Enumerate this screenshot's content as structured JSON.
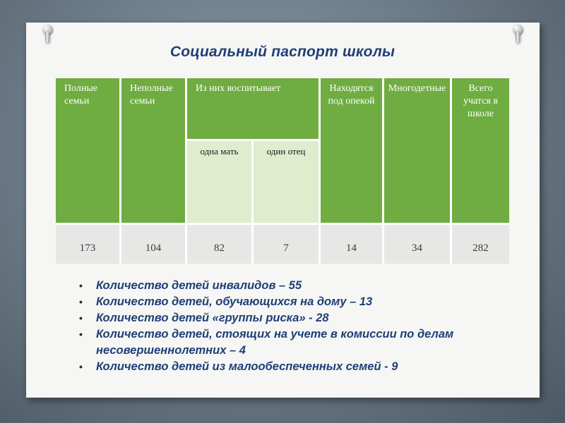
{
  "title": "Социальный паспорт школы",
  "table": {
    "headers": {
      "full_families": "Полные семьи",
      "incomplete_families": "Неполные семьи",
      "raised_by": "Из них воспитывает",
      "under_guardianship": "Находятся под опекой",
      "large_families": "Многодетные",
      "total_students": "Всего учатся в школе"
    },
    "subheaders": {
      "mother_only": "одна мать",
      "father_only": "один отец"
    },
    "values": {
      "full_families": "173",
      "incomplete_families": "104",
      "mother_only": "82",
      "father_only": "7",
      "under_guardianship": "14",
      "large_families": "34",
      "total_students": "282"
    }
  },
  "bullets": [
    "Количество детей инвалидов – 55",
    "Количество детей, обучающихся на дому – 13",
    "Количество детей «группы риска» - 28",
    "Количество детей, стоящих на учете в комиссии по делам несовершеннолетних – 4",
    "Количество детей из малообеспеченных семей - 9"
  ],
  "colors": {
    "header_green": "#6fac41",
    "subheader_green": "#dfeccd",
    "title_blue": "#1f3f78"
  }
}
